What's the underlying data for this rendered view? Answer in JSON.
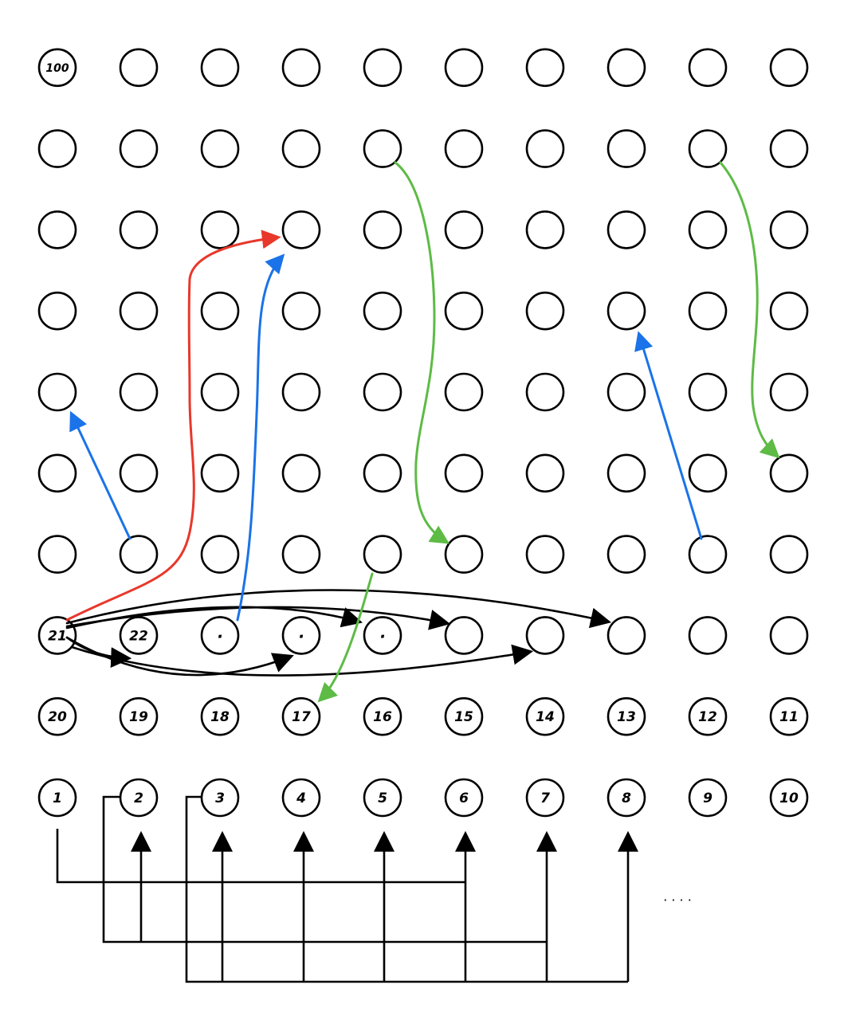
{
  "board": {
    "columns": 10,
    "rows": 10,
    "labels": {
      "r9c0": "100",
      "r2c0": "21",
      "r2c1": "22",
      "r2c2": "·",
      "r2c3": "·",
      "r2c4": "·",
      "r1c0": "20",
      "r1c1": "19",
      "r1c2": "18",
      "r1c3": "17",
      "r1c4": "16",
      "r1c5": "15",
      "r1c6": "14",
      "r1c7": "13",
      "r1c8": "12",
      "r1c9": "11",
      "r0c0": "1",
      "r0c1": "2",
      "r0c2": "3",
      "r0c3": "4",
      "r0c4": "5",
      "r0c5": "6",
      "r0c6": "7",
      "r0c7": "8",
      "r0c8": "9",
      "r0c9": "10"
    }
  },
  "colors": {
    "black": "#000000",
    "red": "#e8382b",
    "blue": "#1a73e8",
    "green": "#5dbb46"
  },
  "continuation_mark": "· · · ·"
}
